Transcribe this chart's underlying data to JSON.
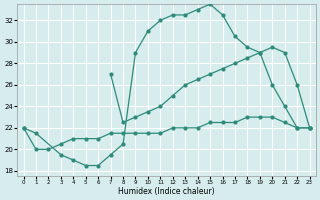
{
  "xlabel": "Humidex (Indice chaleur)",
  "bg_color": "#d6eced",
  "grid_color": "#ffffff",
  "line_color": "#2e8b7a",
  "xlim": [
    -0.5,
    23.5
  ],
  "ylim": [
    17.5,
    33.5
  ],
  "yticks": [
    18,
    20,
    22,
    24,
    26,
    28,
    30,
    32
  ],
  "xticks": [
    0,
    1,
    2,
    3,
    4,
    5,
    6,
    7,
    8,
    9,
    10,
    11,
    12,
    13,
    14,
    15,
    16,
    17,
    18,
    19,
    20,
    21,
    22,
    23
  ],
  "curve1_x": [
    0,
    1,
    3,
    4,
    5,
    6,
    7,
    8,
    9,
    10,
    11,
    12,
    13,
    14,
    15,
    16,
    17,
    18,
    19,
    20,
    21,
    22,
    23
  ],
  "curve1_y": [
    22,
    21.5,
    19.5,
    19,
    18.5,
    18.5,
    19.5,
    20.5,
    29,
    31,
    32,
    32.5,
    32.5,
    33,
    33.5,
    32.5,
    30.5,
    29.5,
    29,
    26,
    24,
    22,
    22
  ],
  "curve2_x": [
    7,
    8,
    9,
    10,
    11,
    12,
    13,
    14,
    15,
    16,
    17,
    18,
    19,
    20,
    21,
    22,
    23
  ],
  "curve2_y": [
    27,
    22.5,
    23,
    23.5,
    24,
    25,
    26,
    26.5,
    27,
    27.5,
    28,
    28.5,
    29,
    29.5,
    29,
    26,
    22
  ],
  "curve3_x": [
    0,
    1,
    2,
    3,
    4,
    5,
    6,
    7,
    8,
    9,
    10,
    11,
    12,
    13,
    14,
    15,
    16,
    17,
    18,
    19,
    20,
    21,
    22,
    23
  ],
  "curve3_y": [
    22,
    20,
    20,
    20.5,
    21,
    21,
    21,
    21.5,
    21.5,
    21.5,
    21.5,
    21.5,
    22,
    22,
    22,
    22.5,
    22.5,
    22.5,
    23,
    23,
    23,
    22.5,
    22,
    22
  ]
}
